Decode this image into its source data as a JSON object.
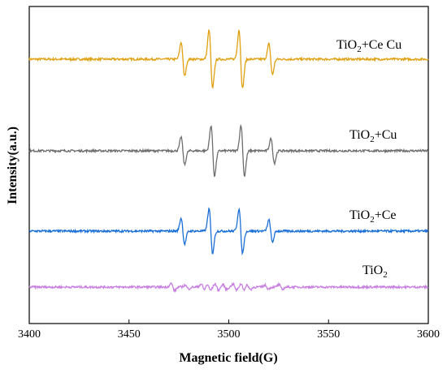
{
  "chart_data": {
    "type": "line",
    "title": "",
    "xlabel": "Magnetic field(G)",
    "ylabel": "Intensity(a.u.)",
    "xlim": [
      3400,
      3600
    ],
    "x_ticks": [
      3400,
      3450,
      3500,
      3550,
      3600
    ],
    "x_tick_labels": [
      "3400",
      "3450",
      "3500",
      "3550",
      "3600"
    ],
    "y_ticks_shown": false,
    "grid": false,
    "legend": "inline labels right of each trace",
    "series": [
      {
        "name": "TiO2+Ce Cu",
        "label_main": "TiO",
        "label_sub": "2",
        "label_rest": "+Ce Cu",
        "color": "#E0A010",
        "baseline": 3.0,
        "peaks": [
          {
            "x": 3477,
            "amp": 0.55
          },
          {
            "x": 3491,
            "amp": 0.95
          },
          {
            "x": 3506,
            "amp": 0.95
          },
          {
            "x": 3521,
            "amp": 0.5
          }
        ]
      },
      {
        "name": "TiO2+Cu",
        "label_main": "TiO",
        "label_sub": "2",
        "label_rest": "+Cu",
        "color": "#6E6E6E",
        "baseline": 2.0,
        "peaks": [
          {
            "x": 3477,
            "amp": 0.45
          },
          {
            "x": 3492,
            "amp": 0.82
          },
          {
            "x": 3507,
            "amp": 0.82
          },
          {
            "x": 3522,
            "amp": 0.4
          }
        ]
      },
      {
        "name": "TiO2+Ce",
        "label_main": "TiO",
        "label_sub": "2",
        "label_rest": "+Ce",
        "color": "#1A6FD6",
        "baseline": 1.0,
        "peaks": [
          {
            "x": 3477,
            "amp": 0.42
          },
          {
            "x": 3491,
            "amp": 0.72
          },
          {
            "x": 3506,
            "amp": 0.72
          },
          {
            "x": 3521,
            "amp": 0.36
          }
        ]
      },
      {
        "name": "TiO2",
        "label_main": "TiO",
        "label_sub": "2",
        "label_rest": "",
        "color": "#C77FE0",
        "baseline": 0.0,
        "peaks": [
          {
            "x": 3472,
            "amp": 0.12
          },
          {
            "x": 3479,
            "amp": 0.06
          },
          {
            "x": 3487,
            "amp": 0.1
          },
          {
            "x": 3490,
            "amp": 0.1
          },
          {
            "x": 3494,
            "amp": 0.1
          },
          {
            "x": 3498,
            "amp": 0.08
          },
          {
            "x": 3503,
            "amp": 0.1
          },
          {
            "x": 3507,
            "amp": 0.1
          },
          {
            "x": 3510,
            "amp": 0.08
          },
          {
            "x": 3519,
            "amp": 0.06
          },
          {
            "x": 3526,
            "amp": 0.08
          }
        ]
      }
    ]
  }
}
